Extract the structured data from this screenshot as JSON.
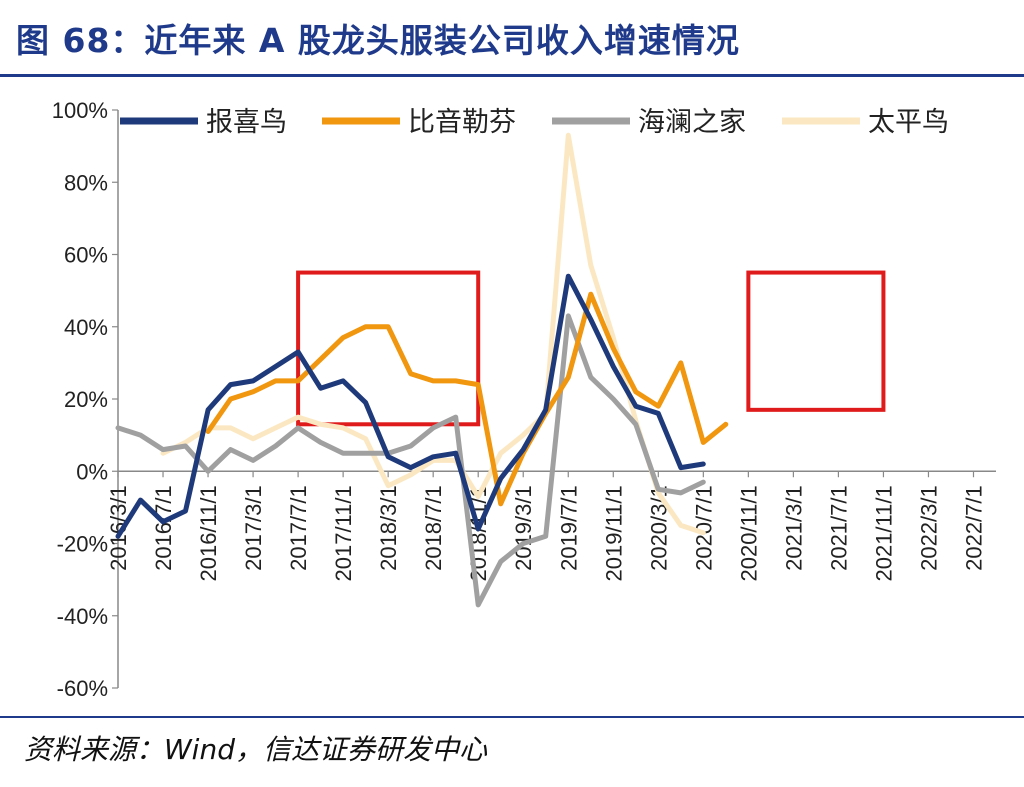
{
  "title": "图 68：近年来 A 股龙头服装公司收入增速情况",
  "source": "资料来源：Wind，信达证券研发中心",
  "chart_data": {
    "type": "line",
    "title": "图 68：近年来 A 股龙头服装公司收入增速情况",
    "xlabel": "",
    "ylabel": "",
    "ylim": [
      -60,
      100
    ],
    "yticks": [
      -60,
      -40,
      -20,
      0,
      20,
      40,
      60,
      80,
      100
    ],
    "ytick_labels": [
      "-60%",
      "-40%",
      "-20%",
      "0%",
      "20%",
      "40%",
      "60%",
      "80%",
      "100%"
    ],
    "grid": false,
    "legend_position": "top",
    "categories": [
      "2016/3/1",
      "2016/5/1",
      "2016/7/1",
      "2016/9/1",
      "2016/11/1",
      "2017/1/1",
      "2017/3/1",
      "2017/5/1",
      "2017/7/1",
      "2017/9/1",
      "2017/11/1",
      "2018/1/1",
      "2018/3/1",
      "2018/5/1",
      "2018/7/1",
      "2018/9/1",
      "2018/11/1",
      "2019/1/1",
      "2019/3/1",
      "2019/5/1",
      "2019/7/1",
      "2019/9/1",
      "2019/11/1",
      "2020/1/1",
      "2020/3/1",
      "2020/5/1",
      "2020/7/1",
      "2020/9/1",
      "2020/11/1",
      "2021/1/1",
      "2021/3/1",
      "2021/5/1",
      "2021/7/1",
      "2021/9/1",
      "2021/11/1",
      "2022/1/1",
      "2022/3/1",
      "2022/5/1",
      "2022/7/1",
      "2022/9/1"
    ],
    "tick_labels": [
      "2016/3/1",
      "2016/7/1",
      "2016/11/1",
      "2017/3/1",
      "2017/7/1",
      "2017/11/1",
      "2018/3/1",
      "2018/7/1",
      "2018/11/1",
      "2019/3/1",
      "2019/7/1",
      "2019/11/1",
      "2020/3/1",
      "2020/7/1",
      "2020/11/1",
      "2021/3/1",
      "2021/7/1",
      "2021/11/1",
      "2022/3/1",
      "2022/7/1"
    ],
    "series": [
      {
        "name": "报喜鸟",
        "color": "#1f3a7a",
        "values": [
          -18,
          -8,
          -14,
          -11,
          17,
          24,
          25,
          29,
          33,
          23,
          25,
          19,
          4,
          1,
          4,
          5,
          -16,
          -2,
          6,
          17,
          54,
          42,
          29,
          18,
          16,
          1,
          2,
          null,
          null,
          null,
          null,
          null,
          null,
          null,
          null,
          null,
          null,
          null,
          null,
          null
        ]
      },
      {
        "name": "比音勒芬",
        "color": "#f0960f",
        "values": [
          null,
          null,
          null,
          null,
          11,
          20,
          22,
          25,
          25,
          31,
          37,
          40,
          40,
          27,
          25,
          25,
          24,
          -9,
          5,
          16,
          26,
          49,
          34,
          22,
          18,
          30,
          8,
          13,
          null,
          null,
          null,
          null,
          null,
          null,
          null,
          null,
          null,
          null,
          null,
          null
        ]
      },
      {
        "name": "海澜之家",
        "color": "#a0a0a0",
        "values": [
          12,
          10,
          6,
          7,
          0,
          6,
          3,
          7,
          12,
          8,
          5,
          5,
          5,
          7,
          12,
          15,
          -37,
          -25,
          -20,
          -18,
          43,
          26,
          20,
          13,
          -5,
          -6,
          -3,
          null,
          null,
          null,
          null,
          null,
          null,
          null,
          null,
          null,
          null,
          null,
          null,
          null
        ]
      },
      {
        "name": "太平鸟",
        "color": "#fbe8c2",
        "values": [
          null,
          null,
          5,
          8,
          12,
          12,
          9,
          12,
          15,
          13,
          12,
          9,
          -4,
          -1,
          3,
          3,
          -7,
          5,
          10,
          16,
          93,
          57,
          37,
          14,
          -6,
          -15,
          -17,
          null,
          null,
          null,
          null,
          null,
          null,
          null,
          null,
          null,
          null,
          null,
          null,
          null
        ]
      }
    ],
    "annotations": [
      {
        "type": "rectangle",
        "label": "box-2017-2018",
        "x_from": "2017/7/1",
        "x_to": "2018/11/1",
        "y_from": 13,
        "y_to": 55,
        "color": "#e01b1b"
      },
      {
        "type": "rectangle",
        "label": "box-2020-2021",
        "x_from": "2020/11/1",
        "x_to": "2021/11/1",
        "y_from": 17,
        "y_to": 55,
        "color": "#e01b1b"
      }
    ]
  }
}
